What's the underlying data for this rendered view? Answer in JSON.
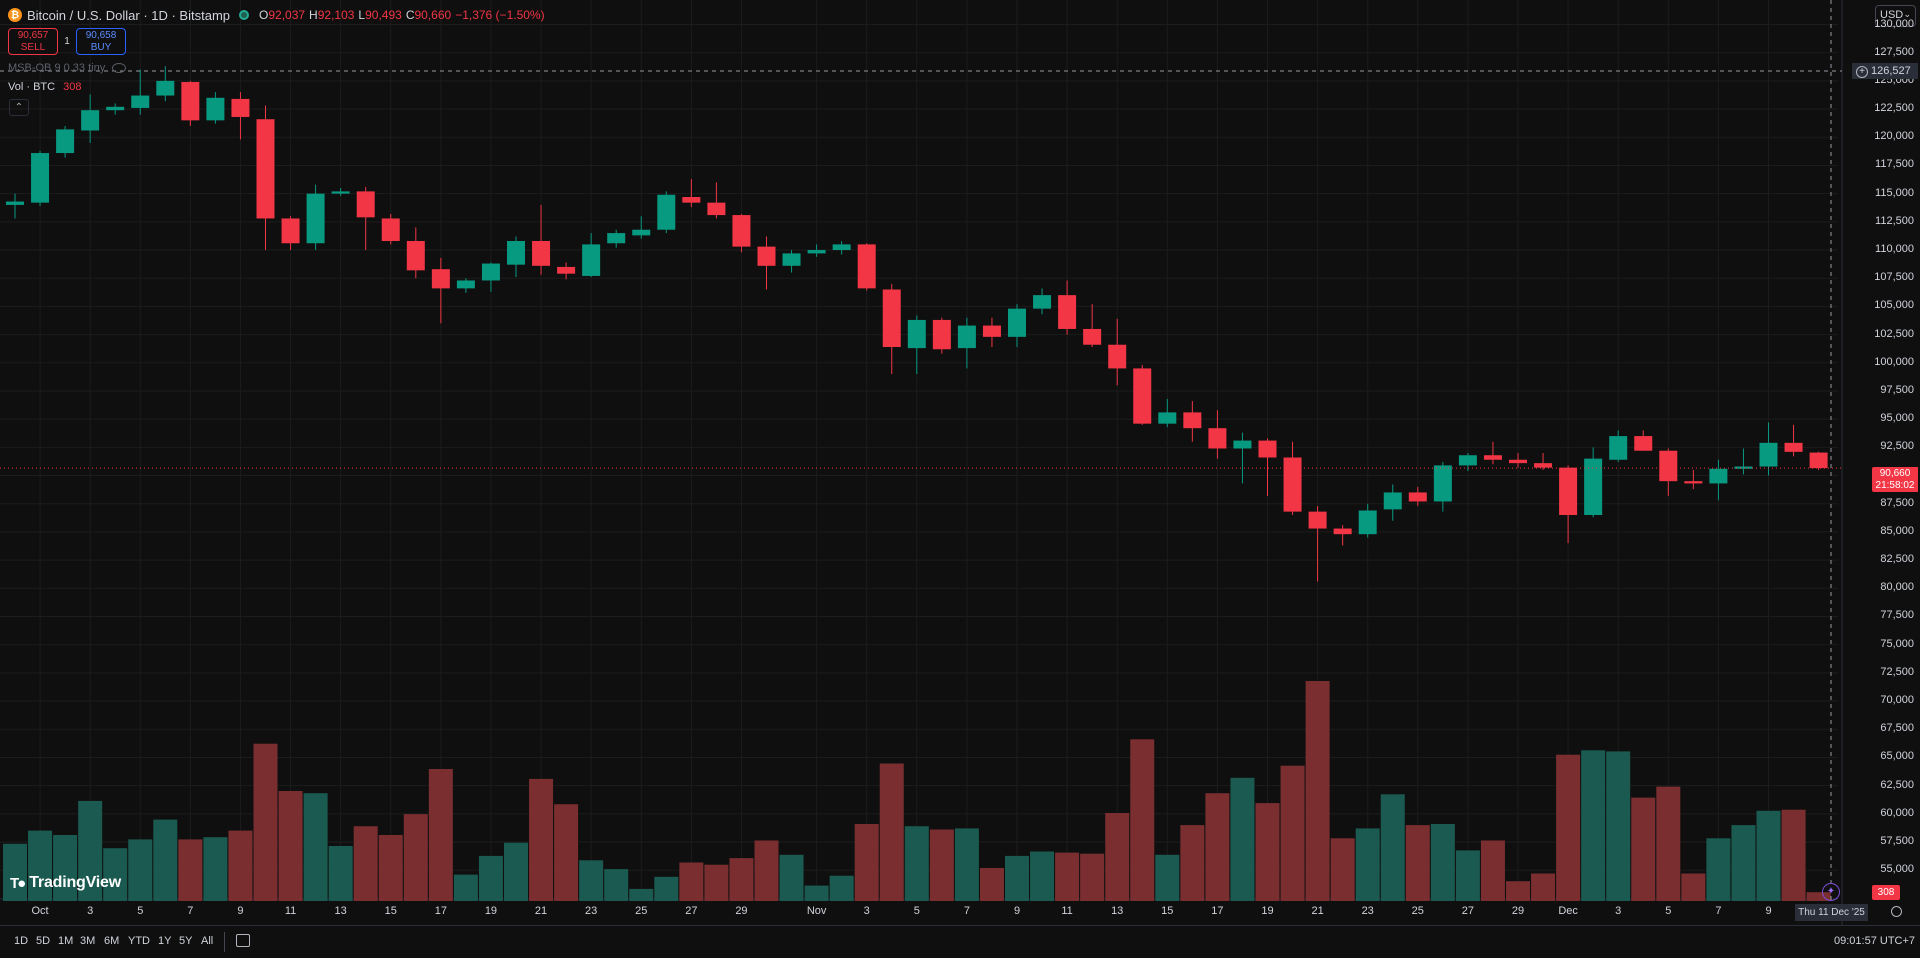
{
  "legend": {
    "symbol": "Bitcoin / U.S. Dollar · 1D · Bitstamp",
    "coin_glyph": "₿",
    "o_label": "O",
    "o_value": "92,037",
    "h_label": "H",
    "h_value": "92,103",
    "l_label": "L",
    "l_value": "90,493",
    "c_label": "C",
    "c_value": "90,660",
    "change": "−1,376 (−1.50%)"
  },
  "trade": {
    "sell_price": "90,657",
    "sell_label": "SELL",
    "spread": "1",
    "buy_price": "90,658",
    "buy_label": "BUY"
  },
  "indicator": {
    "name": "MSB-OB 9 0.33 tiny"
  },
  "volume_legend": {
    "label": "Vol · BTC",
    "value": "308"
  },
  "currency": "USD",
  "crosshair_price": "126,527",
  "last_price": {
    "price": "90,660",
    "countdown": "21:58:02",
    "volume": "308"
  },
  "crosshair_date": "Thu 11 Dec '25",
  "brand": "TradingView",
  "ranges": [
    "1D",
    "5D",
    "1M",
    "3M",
    "6M",
    "YTD",
    "1Y",
    "5Y",
    "All"
  ],
  "clock": "09:01:57 UTC+7",
  "colors": {
    "up": "#089981",
    "down": "#f23645",
    "up_volume": "#1a5a50",
    "down_volume": "#7a2e30",
    "background": "#0f0f0f",
    "grid": "#1c1c1c"
  },
  "chart_data": {
    "type": "candlestick",
    "title": "Bitcoin / U.S. Dollar · 1D · Bitstamp",
    "ylim": [
      52500,
      131000
    ],
    "y_ticks": [
      55000,
      57500,
      60000,
      62500,
      65000,
      67500,
      70000,
      72500,
      75000,
      77500,
      80000,
      82500,
      85000,
      87500,
      90000,
      92500,
      95000,
      97500,
      100000,
      102500,
      105000,
      107500,
      110000,
      112500,
      115000,
      117500,
      120000,
      122500,
      125000,
      127500,
      130000
    ],
    "y_tick_labels": [
      "55,000",
      "57,500",
      "60,000",
      "62,500",
      "65,000",
      "67,500",
      "70,000",
      "72,500",
      "75,000",
      "77,500",
      "80,000",
      "82,500",
      "85,000",
      "87,500",
      "90,000",
      "92,500",
      "95,000",
      "97,500",
      "100,000",
      "102,500",
      "105,000",
      "107,500",
      "110,000",
      "112,500",
      "115,000",
      "117,500",
      "120,000",
      "122,500",
      "125,000",
      "127,500",
      "130,000"
    ],
    "x_tick_labels": [
      {
        "day": 1,
        "label": "Oct"
      },
      {
        "day": 3,
        "label": "3"
      },
      {
        "day": 5,
        "label": "5"
      },
      {
        "day": 7,
        "label": "7"
      },
      {
        "day": 9,
        "label": "9"
      },
      {
        "day": 11,
        "label": "11"
      },
      {
        "day": 13,
        "label": "13"
      },
      {
        "day": 15,
        "label": "15"
      },
      {
        "day": 17,
        "label": "17"
      },
      {
        "day": 19,
        "label": "19"
      },
      {
        "day": 21,
        "label": "21"
      },
      {
        "day": 23,
        "label": "23"
      },
      {
        "day": 25,
        "label": "25"
      },
      {
        "day": 27,
        "label": "27"
      },
      {
        "day": 29,
        "label": "29"
      },
      {
        "day": 32,
        "label": "Nov"
      },
      {
        "day": 34,
        "label": "3"
      },
      {
        "day": 36,
        "label": "5"
      },
      {
        "day": 38,
        "label": "7"
      },
      {
        "day": 40,
        "label": "9"
      },
      {
        "day": 42,
        "label": "11"
      },
      {
        "day": 44,
        "label": "13"
      },
      {
        "day": 46,
        "label": "15"
      },
      {
        "day": 48,
        "label": "17"
      },
      {
        "day": 50,
        "label": "19"
      },
      {
        "day": 52,
        "label": "21"
      },
      {
        "day": 54,
        "label": "23"
      },
      {
        "day": 56,
        "label": "25"
      },
      {
        "day": 58,
        "label": "27"
      },
      {
        "day": 60,
        "label": "29"
      },
      {
        "day": 62,
        "label": "Dec"
      },
      {
        "day": 64,
        "label": "3"
      },
      {
        "day": 66,
        "label": "5"
      },
      {
        "day": 68,
        "label": "7"
      },
      {
        "day": 70,
        "label": "9"
      }
    ],
    "candles": [
      {
        "day": 0,
        "o": 114000,
        "h": 115000,
        "l": 112800,
        "c": 114300,
        "v": 52
      },
      {
        "day": 1,
        "o": 114200,
        "h": 118800,
        "l": 113900,
        "c": 118600,
        "v": 64
      },
      {
        "day": 2,
        "o": 118600,
        "h": 121000,
        "l": 118200,
        "c": 120700,
        "v": 60
      },
      {
        "day": 3,
        "o": 120600,
        "h": 123800,
        "l": 119500,
        "c": 122400,
        "v": 91
      },
      {
        "day": 4,
        "o": 122400,
        "h": 123000,
        "l": 122000,
        "c": 122700,
        "v": 48
      },
      {
        "day": 5,
        "o": 122600,
        "h": 126000,
        "l": 122000,
        "c": 123700,
        "v": 56
      },
      {
        "day": 6,
        "o": 123700,
        "h": 126300,
        "l": 123200,
        "c": 125000,
        "v": 74
      },
      {
        "day": 7,
        "o": 124900,
        "h": 125000,
        "l": 121000,
        "c": 121500,
        "v": 56
      },
      {
        "day": 8,
        "o": 121500,
        "h": 124000,
        "l": 121200,
        "c": 123500,
        "v": 58
      },
      {
        "day": 9,
        "o": 123400,
        "h": 124000,
        "l": 119800,
        "c": 121800,
        "v": 64
      },
      {
        "day": 10,
        "o": 121600,
        "h": 122800,
        "l": 110000,
        "c": 112800,
        "v": 143
      },
      {
        "day": 11,
        "o": 112800,
        "h": 113000,
        "l": 110000,
        "c": 110600,
        "v": 100
      },
      {
        "day": 12,
        "o": 110600,
        "h": 115800,
        "l": 110000,
        "c": 115000,
        "v": 98
      },
      {
        "day": 13,
        "o": 115000,
        "h": 115500,
        "l": 114800,
        "c": 115200,
        "v": 50
      },
      {
        "day": 14,
        "o": 115200,
        "h": 115600,
        "l": 110000,
        "c": 112900,
        "v": 68
      },
      {
        "day": 15,
        "o": 112800,
        "h": 113200,
        "l": 110500,
        "c": 110800,
        "v": 60
      },
      {
        "day": 16,
        "o": 110800,
        "h": 112000,
        "l": 107500,
        "c": 108200,
        "v": 79
      },
      {
        "day": 17,
        "o": 108300,
        "h": 109300,
        "l": 103500,
        "c": 106600,
        "v": 120
      },
      {
        "day": 18,
        "o": 106600,
        "h": 107500,
        "l": 106200,
        "c": 107300,
        "v": 24
      },
      {
        "day": 19,
        "o": 107300,
        "h": 108900,
        "l": 106300,
        "c": 108800,
        "v": 41
      },
      {
        "day": 20,
        "o": 108700,
        "h": 111200,
        "l": 107600,
        "c": 110800,
        "v": 53
      },
      {
        "day": 21,
        "o": 110800,
        "h": 114000,
        "l": 107800,
        "c": 108600,
        "v": 111
      },
      {
        "day": 22,
        "o": 108500,
        "h": 108900,
        "l": 107400,
        "c": 107900,
        "v": 88
      },
      {
        "day": 23,
        "o": 107700,
        "h": 111500,
        "l": 107600,
        "c": 110500,
        "v": 37
      },
      {
        "day": 24,
        "o": 110600,
        "h": 111800,
        "l": 110200,
        "c": 111500,
        "v": 29
      },
      {
        "day": 25,
        "o": 111300,
        "h": 113000,
        "l": 111000,
        "c": 111800,
        "v": 11
      },
      {
        "day": 26,
        "o": 111800,
        "h": 115200,
        "l": 111500,
        "c": 114900,
        "v": 22
      },
      {
        "day": 27,
        "o": 114700,
        "h": 116300,
        "l": 113800,
        "c": 114200,
        "v": 35
      },
      {
        "day": 28,
        "o": 114200,
        "h": 116000,
        "l": 112800,
        "c": 113100,
        "v": 33
      },
      {
        "day": 29,
        "o": 113100,
        "h": 113200,
        "l": 109800,
        "c": 110300,
        "v": 39
      },
      {
        "day": 30,
        "o": 110300,
        "h": 111200,
        "l": 106500,
        "c": 108600,
        "v": 55
      },
      {
        "day": 31,
        "o": 108600,
        "h": 110000,
        "l": 108000,
        "c": 109700,
        "v": 42
      },
      {
        "day": 32,
        "o": 109700,
        "h": 110500,
        "l": 109400,
        "c": 110000,
        "v": 14
      },
      {
        "day": 33,
        "o": 110000,
        "h": 110800,
        "l": 109600,
        "c": 110500,
        "v": 23
      },
      {
        "day": 34,
        "o": 110500,
        "h": 110600,
        "l": 106400,
        "c": 106600,
        "v": 70
      },
      {
        "day": 35,
        "o": 106500,
        "h": 107000,
        "l": 99000,
        "c": 101400,
        "v": 125
      },
      {
        "day": 36,
        "o": 101300,
        "h": 104200,
        "l": 99000,
        "c": 103800,
        "v": 68
      },
      {
        "day": 37,
        "o": 103800,
        "h": 104000,
        "l": 100800,
        "c": 101200,
        "v": 65
      },
      {
        "day": 38,
        "o": 101300,
        "h": 104000,
        "l": 99500,
        "c": 103300,
        "v": 66
      },
      {
        "day": 39,
        "o": 103300,
        "h": 104000,
        "l": 101400,
        "c": 102300,
        "v": 30
      },
      {
        "day": 40,
        "o": 102300,
        "h": 105200,
        "l": 101400,
        "c": 104800,
        "v": 41
      },
      {
        "day": 41,
        "o": 104800,
        "h": 106600,
        "l": 104300,
        "c": 106000,
        "v": 45
      },
      {
        "day": 42,
        "o": 106000,
        "h": 107300,
        "l": 102500,
        "c": 103000,
        "v": 44
      },
      {
        "day": 43,
        "o": 103000,
        "h": 105200,
        "l": 101400,
        "c": 101600,
        "v": 43
      },
      {
        "day": 44,
        "o": 101600,
        "h": 103900,
        "l": 98000,
        "c": 99500,
        "v": 80
      },
      {
        "day": 45,
        "o": 99500,
        "h": 99800,
        "l": 94500,
        "c": 94600,
        "v": 147
      },
      {
        "day": 46,
        "o": 94600,
        "h": 96800,
        "l": 94300,
        "c": 95600,
        "v": 42
      },
      {
        "day": 47,
        "o": 95600,
        "h": 96600,
        "l": 93000,
        "c": 94200,
        "v": 69
      },
      {
        "day": 48,
        "o": 94200,
        "h": 95800,
        "l": 91500,
        "c": 92400,
        "v": 98
      },
      {
        "day": 49,
        "o": 92400,
        "h": 93800,
        "l": 89300,
        "c": 93100,
        "v": 112
      },
      {
        "day": 50,
        "o": 93100,
        "h": 93300,
        "l": 88200,
        "c": 91600,
        "v": 89
      },
      {
        "day": 51,
        "o": 91600,
        "h": 93000,
        "l": 86500,
        "c": 86800,
        "v": 123
      },
      {
        "day": 52,
        "o": 86800,
        "h": 87300,
        "l": 80600,
        "c": 85300,
        "v": 200
      },
      {
        "day": 53,
        "o": 85300,
        "h": 85600,
        "l": 83800,
        "c": 84800,
        "v": 57
      },
      {
        "day": 54,
        "o": 84800,
        "h": 87500,
        "l": 84500,
        "c": 86900,
        "v": 66
      },
      {
        "day": 55,
        "o": 87000,
        "h": 89200,
        "l": 86000,
        "c": 88500,
        "v": 97
      },
      {
        "day": 56,
        "o": 88500,
        "h": 89000,
        "l": 87300,
        "c": 87700,
        "v": 69
      },
      {
        "day": 57,
        "o": 87700,
        "h": 91200,
        "l": 86800,
        "c": 90900,
        "v": 70
      },
      {
        "day": 58,
        "o": 90900,
        "h": 92000,
        "l": 90400,
        "c": 91800,
        "v": 46
      },
      {
        "day": 59,
        "o": 91800,
        "h": 93000,
        "l": 91000,
        "c": 91400,
        "v": 55
      },
      {
        "day": 60,
        "o": 91400,
        "h": 92000,
        "l": 90700,
        "c": 91100,
        "v": 18
      },
      {
        "day": 61,
        "o": 91100,
        "h": 92000,
        "l": 90500,
        "c": 90700,
        "v": 25
      },
      {
        "day": 62,
        "o": 90700,
        "h": 90900,
        "l": 84000,
        "c": 86500,
        "v": 133
      },
      {
        "day": 63,
        "o": 86500,
        "h": 92500,
        "l": 86300,
        "c": 91500,
        "v": 137
      },
      {
        "day": 64,
        "o": 91400,
        "h": 94000,
        "l": 91200,
        "c": 93500,
        "v": 136
      },
      {
        "day": 65,
        "o": 93500,
        "h": 94000,
        "l": 92200,
        "c": 92200,
        "v": 94
      },
      {
        "day": 66,
        "o": 92200,
        "h": 92400,
        "l": 88200,
        "c": 89500,
        "v": 104
      },
      {
        "day": 67,
        "o": 89500,
        "h": 90500,
        "l": 88800,
        "c": 89300,
        "v": 25
      },
      {
        "day": 68,
        "o": 89300,
        "h": 91400,
        "l": 87800,
        "c": 90600,
        "v": 57
      },
      {
        "day": 69,
        "o": 90600,
        "h": 92400,
        "l": 90100,
        "c": 90800,
        "v": 69
      },
      {
        "day": 70,
        "o": 90800,
        "h": 94700,
        "l": 90000,
        "c": 92900,
        "v": 82
      },
      {
        "day": 71,
        "o": 92900,
        "h": 94500,
        "l": 91700,
        "c": 92100,
        "v": 83
      },
      {
        "day": 72,
        "o": 92037,
        "h": 92103,
        "l": 90493,
        "c": 90660,
        "v": 8
      }
    ]
  }
}
